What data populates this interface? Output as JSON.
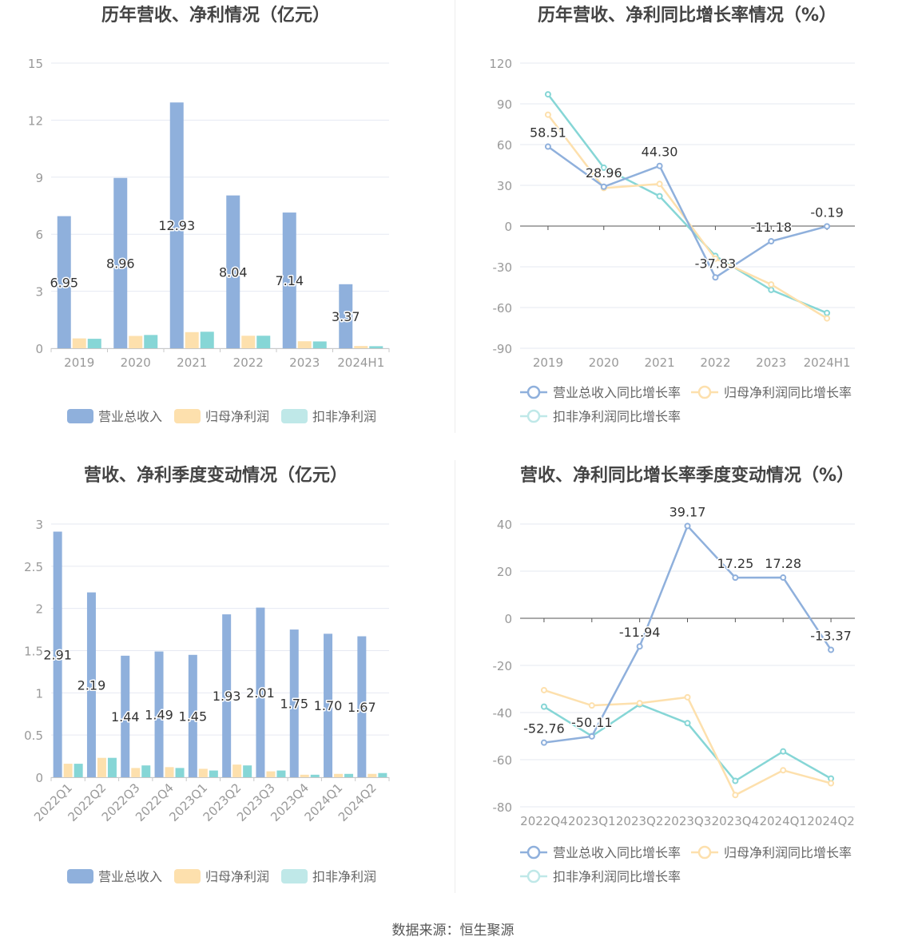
{
  "colors": {
    "revenue": "#8fb0dc",
    "net_profit": "#fde0ad",
    "deducted_profit": "#86d6d6",
    "deducted_profit_legend": "#bfe8e8",
    "title": "#444444",
    "axis_text": "#999999",
    "grid": "#e6e9f2",
    "label": "#333333"
  },
  "footer": {
    "source": "数据来源：恒生聚源"
  },
  "chart_data": [
    {
      "id": "annual-amount",
      "type": "bar",
      "title": "历年营收、净利情况（亿元）",
      "categories": [
        "2019",
        "2020",
        "2021",
        "2022",
        "2023",
        "2024H1"
      ],
      "series": [
        {
          "name": "营业总收入",
          "values": [
            6.95,
            8.96,
            12.93,
            8.04,
            7.14,
            3.37
          ]
        },
        {
          "name": "归母净利润",
          "values": [
            0.52,
            0.65,
            0.85,
            0.66,
            0.37,
            0.12
          ]
        },
        {
          "name": "扣非净利润",
          "values": [
            0.5,
            0.7,
            0.87,
            0.66,
            0.36,
            0.11
          ]
        }
      ],
      "data_labels": [
        "6.95",
        "8.96",
        "12.93",
        "8.04",
        "7.14",
        "3.37"
      ],
      "ylim": [
        0,
        15
      ],
      "yticks": [
        "0",
        "3",
        "6",
        "9",
        "12",
        "15"
      ],
      "legend": [
        "营业总收入",
        "归母净利润",
        "扣非净利润"
      ]
    },
    {
      "id": "annual-growth",
      "type": "line",
      "title": "历年营收、净利同比增长率情况（%）",
      "categories": [
        "2019",
        "2020",
        "2021",
        "2022",
        "2023",
        "2024H1"
      ],
      "series": [
        {
          "name": "营业总收入同比增长率",
          "values": [
            58.51,
            28.96,
            44.3,
            -37.83,
            -11.18,
            -0.19
          ]
        },
        {
          "name": "归母净利润同比增长率",
          "values": [
            82,
            28,
            31,
            -24,
            -43,
            -68
          ]
        },
        {
          "name": "扣非净利润同比增长率",
          "values": [
            97,
            43,
            22,
            -22,
            -47,
            -64
          ]
        }
      ],
      "data_labels": [
        "58.51",
        "28.96",
        "44.30",
        "-37.83",
        "-11.18",
        "-0.19"
      ],
      "ylim": [
        -90,
        120
      ],
      "yticks": [
        "-90",
        "-60",
        "-30",
        "0",
        "30",
        "60",
        "90",
        "120"
      ],
      "legend": [
        "营业总收入同比增长率",
        "归母净利润同比增长率",
        "扣非净利润同比增长率"
      ]
    },
    {
      "id": "quarterly-amount",
      "type": "bar",
      "title": "营收、净利季度变动情况（亿元）",
      "categories": [
        "2022Q1",
        "2022Q2",
        "2022Q3",
        "2022Q4",
        "2023Q1",
        "2023Q2",
        "2023Q3",
        "2023Q4",
        "2024Q1",
        "2024Q2"
      ],
      "series": [
        {
          "name": "营业总收入",
          "values": [
            2.91,
            2.19,
            1.44,
            1.49,
            1.45,
            1.93,
            2.01,
            1.75,
            1.7,
            1.67
          ]
        },
        {
          "name": "归母净利润",
          "values": [
            0.16,
            0.23,
            0.11,
            0.12,
            0.1,
            0.15,
            0.07,
            0.03,
            0.04,
            0.04
          ]
        },
        {
          "name": "扣非净利润",
          "values": [
            0.16,
            0.23,
            0.14,
            0.11,
            0.08,
            0.14,
            0.08,
            0.03,
            0.04,
            0.05
          ]
        }
      ],
      "data_labels": [
        "2.91",
        "2.19",
        "1.44",
        "1.49",
        "1.45",
        "1.93",
        "2.01",
        "1.75",
        "1.70",
        "1.67"
      ],
      "ylim": [
        0,
        3
      ],
      "yticks": [
        "0",
        "0.5",
        "1",
        "1.5",
        "2",
        "2.5",
        "3"
      ],
      "legend": [
        "营业总收入",
        "归母净利润",
        "扣非净利润"
      ]
    },
    {
      "id": "quarterly-growth",
      "type": "line",
      "title": "营收、净利同比增长率季度变动情况（%）",
      "categories": [
        "2022Q4",
        "2023Q1",
        "2023Q2",
        "2023Q3",
        "2023Q4",
        "2024Q1",
        "2024Q2"
      ],
      "series": [
        {
          "name": "营业总收入同比增长率",
          "values": [
            -52.76,
            -50.11,
            -11.94,
            39.17,
            17.25,
            17.28,
            -13.37
          ]
        },
        {
          "name": "归母净利润同比增长率",
          "values": [
            -30.5,
            -37,
            -36,
            -33.5,
            -75,
            -64.5,
            -70
          ]
        },
        {
          "name": "扣非净利润同比增长率",
          "values": [
            -37.5,
            -50,
            -36.5,
            -44.5,
            -69,
            -56.5,
            -68
          ]
        }
      ],
      "data_labels": [
        "-52.76",
        "-50.11",
        "-11.94",
        "39.17",
        "17.25",
        "17.28",
        "-13.37"
      ],
      "ylim": [
        -80,
        40
      ],
      "yticks": [
        "-80",
        "-60",
        "-40",
        "-20",
        "0",
        "20",
        "40"
      ],
      "legend": [
        "营业总收入同比增长率",
        "归母净利润同比增长率",
        "扣非净利润同比增长率"
      ]
    }
  ]
}
